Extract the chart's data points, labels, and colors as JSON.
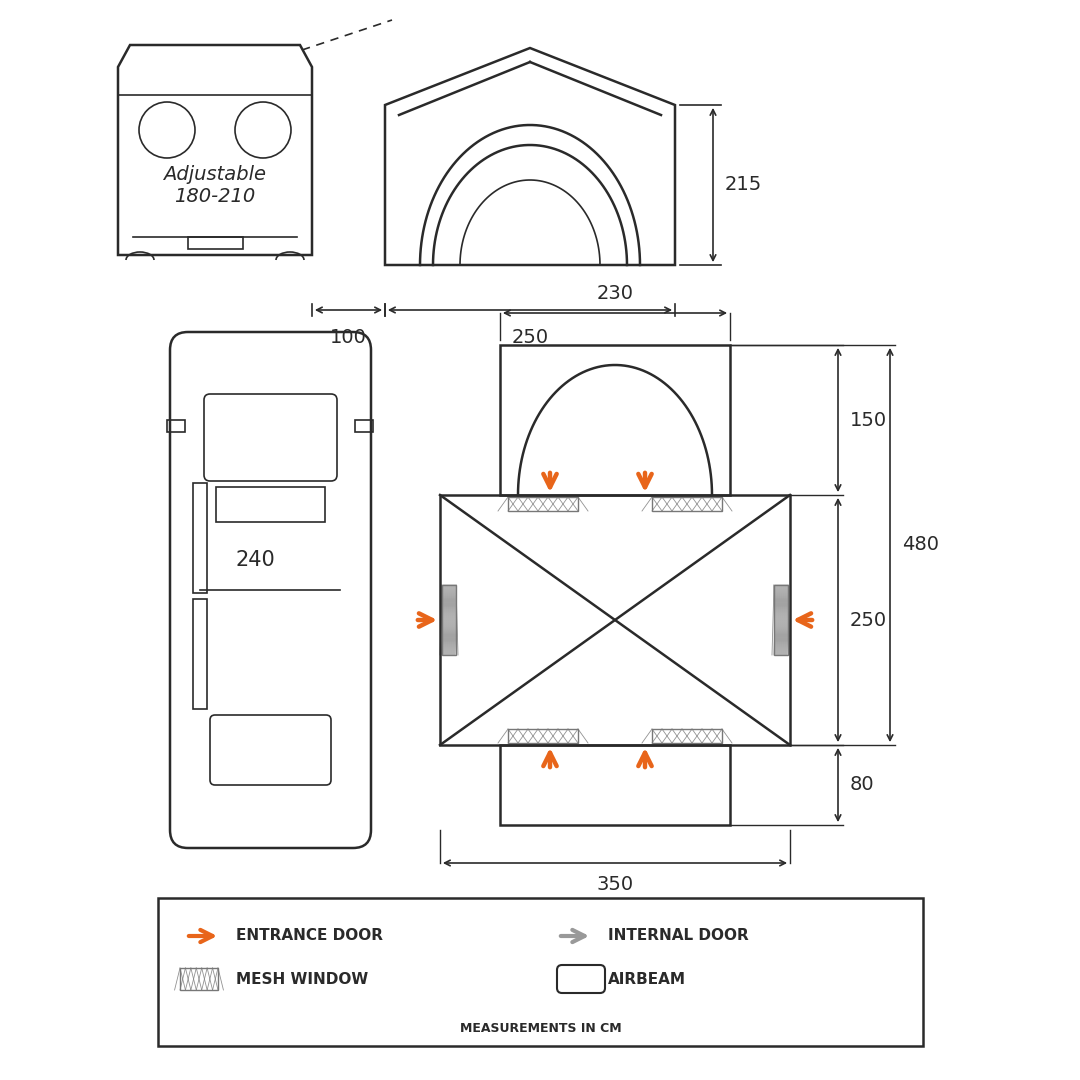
{
  "bg_color": "#ffffff",
  "line_color": "#2a2a2a",
  "orange_color": "#E8651A",
  "gray_color": "#999999",
  "dim_font_size": 14,
  "legend_font_size": 11,
  "measurements_font_size": 9,
  "adjustable_text": "Adjustable\n180-210",
  "dim_215": "215",
  "dim_100": "100",
  "dim_250": "250",
  "dim_230": "230",
  "dim_150": "150",
  "dim_480": "480",
  "dim_250side": "250",
  "dim_80": "80",
  "dim_350": "350",
  "dim_240": "240",
  "measurements_note": "MEASUREMENTS IN CM"
}
